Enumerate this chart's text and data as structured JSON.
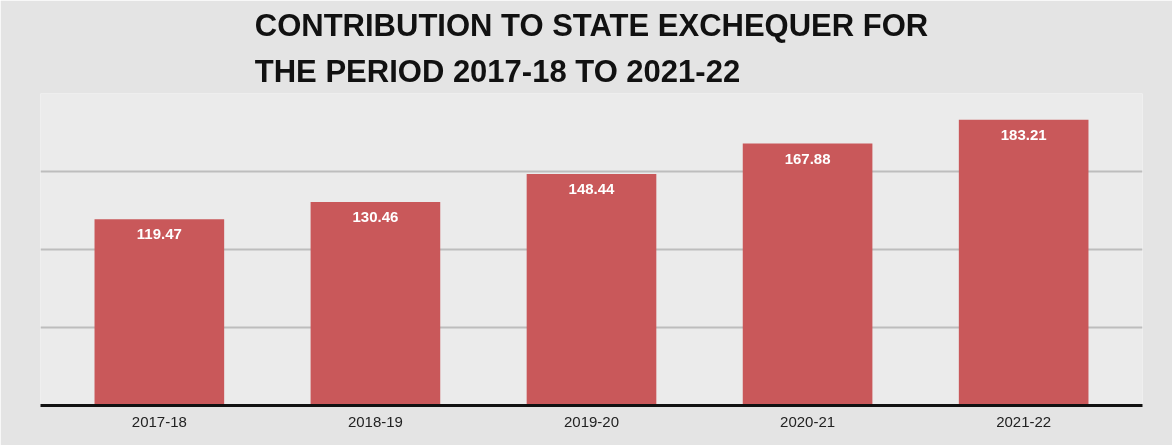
{
  "chart_data": {
    "type": "bar",
    "title": "CONTRIBUTION TO STATE EXCHEQUER FOR THE PERIOD 2017-18 TO 2021-22",
    "categories": [
      "2017-18",
      "2018-19",
      "2019-20",
      "2020-21",
      "2021-22"
    ],
    "values": [
      119.47,
      130.46,
      148.44,
      167.88,
      183.21
    ],
    "color": "#c9585a",
    "data_labels": true,
    "ylim": [
      0,
      200
    ],
    "yticks": [
      {
        "value": 50,
        "label": null
      },
      {
        "value": 100,
        "label": null
      },
      {
        "value": 150,
        "label": null
      },
      {
        "value": 200,
        "label": null
      }
    ],
    "grid": "y",
    "tick_labels": "x"
  }
}
